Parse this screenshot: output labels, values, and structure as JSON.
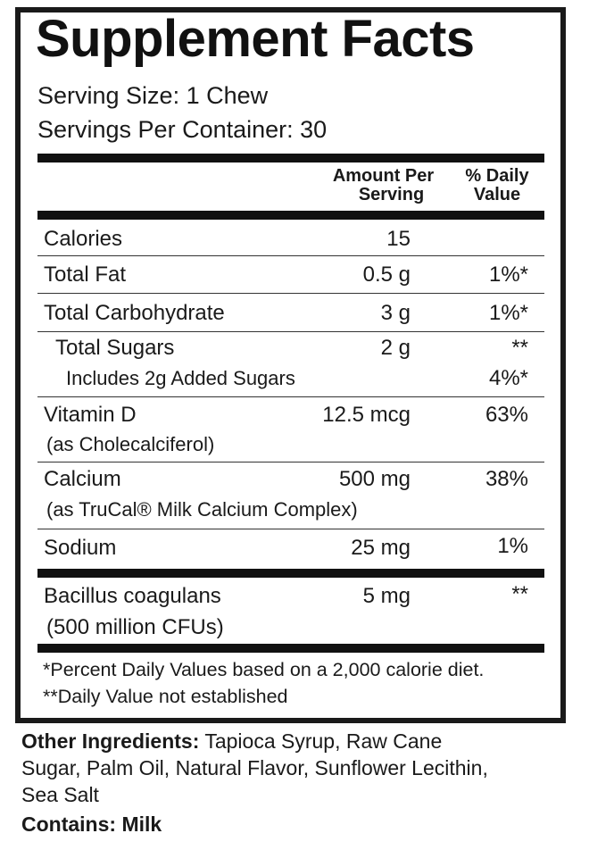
{
  "title": "Supplement Facts",
  "serving_size": "Serving Size: 1 Chew",
  "servings_per_container": "Servings Per Container: 30",
  "header": {
    "amount_line1": "Amount Per",
    "amount_line2": "Serving",
    "dv_line1": "% Daily",
    "dv_line2": "Value"
  },
  "rows": [
    {
      "name": "Calories",
      "amount": "15",
      "dv": ""
    },
    {
      "name": "Total Fat",
      "amount": "0.5 g",
      "dv": "1%*"
    },
    {
      "name": "Total Carbohydrate",
      "amount": "3 g",
      "dv": "1%*"
    },
    {
      "name": "Total Sugars",
      "amount": "2 g",
      "dv": "**"
    },
    {
      "name": "Includes 2g Added Sugars",
      "amount": "",
      "dv": "4%*"
    },
    {
      "name": "Vitamin D",
      "detail": "(as Cholecalciferol)",
      "amount": "12.5 mcg",
      "dv": "63%"
    },
    {
      "name": "Calcium",
      "detail": "(as TruCal® Milk Calcium Complex)",
      "amount": "500 mg",
      "dv": "38%"
    },
    {
      "name": "Sodium",
      "amount": "25 mg",
      "dv": "1%"
    },
    {
      "name": "Bacillus coagulans",
      "detail": "(500 million CFUs)",
      "amount": "5 mg",
      "dv": "**"
    }
  ],
  "footnotes": [
    "*Percent Daily Values based on a 2,000 calorie diet.",
    "**Daily Value not established"
  ],
  "other_ingredients": {
    "label": "Other Ingredients:",
    "lines": [
      " Tapioca Syrup, Raw Cane",
      "Sugar, Palm Oil, Natural Flavor, Sunflower Lecithin,",
      "Sea Salt"
    ]
  },
  "contains": "Contains: Milk"
}
